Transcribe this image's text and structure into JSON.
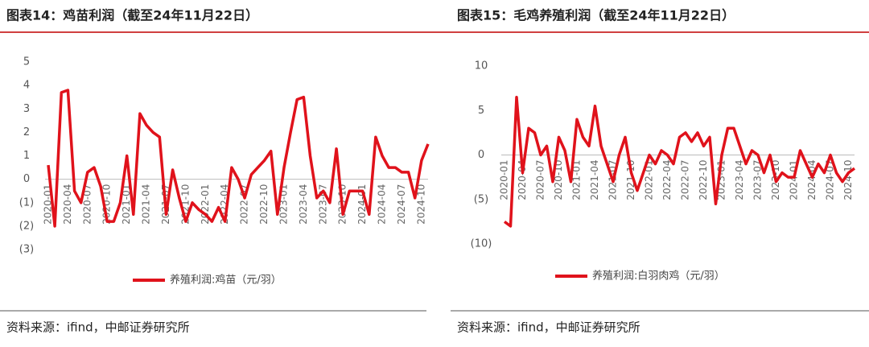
{
  "chart_data": [
    {
      "type": "line",
      "title": "图表14：鸡苗利润（截至24年11月22日）",
      "source": "资料来源：ifind，中邮证券研究所",
      "x": [
        "2020-01",
        "2020-02",
        "2020-03",
        "2020-04",
        "2020-05",
        "2020-06",
        "2020-07",
        "2020-08",
        "2020-09",
        "2020-10",
        "2020-11",
        "2020-12",
        "2021-01",
        "2021-02",
        "2021-03",
        "2021-04",
        "2021-05",
        "2021-06",
        "2021-07",
        "2021-08",
        "2021-09",
        "2021-10",
        "2021-11",
        "2021-12",
        "2022-01",
        "2022-02",
        "2022-03",
        "2022-04",
        "2022-05",
        "2022-06",
        "2022-07",
        "2022-08",
        "2022-09",
        "2022-10",
        "2022-11",
        "2022-12",
        "2023-01",
        "2023-02",
        "2023-03",
        "2023-04",
        "2023-05",
        "2023-06",
        "2023-07",
        "2023-08",
        "2023-09",
        "2023-10",
        "2023-11",
        "2023-12",
        "2024-01",
        "2024-02",
        "2024-03",
        "2024-04",
        "2024-05",
        "2024-06",
        "2024-07",
        "2024-08",
        "2024-09",
        "2024-10",
        "2024-11"
      ],
      "series": [
        {
          "name": "养殖利润:鸡苗（元/羽）",
          "color": "#e0121b",
          "values": [
            0.6,
            -2,
            3.7,
            3.8,
            -0.5,
            -1,
            0.3,
            0.5,
            -0.3,
            -1.8,
            -1.8,
            -1,
            1,
            -1.5,
            2.8,
            2.3,
            2,
            1.8,
            -1.5,
            0.4,
            -0.8,
            -1.8,
            -1,
            -1.3,
            -1.5,
            -1.8,
            -1.2,
            -1.8,
            0.5,
            0,
            -0.8,
            0.2,
            0.5,
            0.8,
            1.2,
            -1.5,
            0.5,
            2,
            3.4,
            3.5,
            1,
            -0.8,
            -0.5,
            -1,
            1.3,
            -1.5,
            -0.5,
            -0.5,
            -0.5,
            -1.5,
            1.8,
            1,
            0.5,
            0.5,
            0.3,
            0.3,
            -0.8,
            0.8,
            1.5
          ]
        }
      ],
      "xticks": [
        "2020-01",
        "2020-04",
        "2020-07",
        "2020-10",
        "2021-01",
        "2021-04",
        "2021-07",
        "2021-10",
        "2022-01",
        "2022-04",
        "2022-07",
        "2022-10",
        "2023-01",
        "2023-04",
        "2023-07",
        "2023-10",
        "2024-01",
        "2024-04",
        "2024-07",
        "2024-10"
      ],
      "ylim": [
        -3,
        5
      ],
      "yticks": [
        {
          "value": -3,
          "label": "(3)"
        },
        {
          "value": -2,
          "label": "(2)"
        },
        {
          "value": -1,
          "label": "(1)"
        },
        0,
        1,
        2,
        3,
        4,
        5
      ],
      "negative_label_color": "#e0121b",
      "grid": false
    },
    {
      "type": "line",
      "title": "图表15：毛鸡养殖利润（截至24年11月22日）",
      "source": "资料来源：ifind，中邮证券研究所",
      "x": [
        "2020-01",
        "2020-02",
        "2020-03",
        "2020-04",
        "2020-05",
        "2020-06",
        "2020-07",
        "2020-08",
        "2020-09",
        "2020-10",
        "2020-11",
        "2020-12",
        "2021-01",
        "2021-02",
        "2021-03",
        "2021-04",
        "2021-05",
        "2021-06",
        "2021-07",
        "2021-08",
        "2021-09",
        "2021-10",
        "2021-11",
        "2021-12",
        "2022-01",
        "2022-02",
        "2022-03",
        "2022-04",
        "2022-05",
        "2022-06",
        "2022-07",
        "2022-08",
        "2022-09",
        "2022-10",
        "2022-11",
        "2022-12",
        "2023-01",
        "2023-02",
        "2023-03",
        "2023-04",
        "2023-05",
        "2023-06",
        "2023-07",
        "2023-08",
        "2023-09",
        "2023-10",
        "2023-11",
        "2023-12",
        "2024-01",
        "2024-02",
        "2024-03",
        "2024-04",
        "2024-05",
        "2024-06",
        "2024-07",
        "2024-08",
        "2024-09",
        "2024-10",
        "2024-11"
      ],
      "series": [
        {
          "name": "养殖利润:白羽肉鸡（元/羽）",
          "color": "#e0121b",
          "values": [
            -7.5,
            -8,
            6.5,
            -2,
            3,
            2.5,
            0,
            1,
            -3,
            2,
            0.5,
            -3,
            4,
            2,
            1,
            5.5,
            1,
            -1,
            -3,
            0,
            2,
            -2,
            -4,
            -2,
            0,
            -1,
            0.5,
            0,
            -1,
            2,
            2.5,
            1.5,
            2.5,
            1,
            2,
            -5.5,
            0,
            3,
            3,
            1,
            -1,
            0.5,
            0,
            -2,
            0,
            -3,
            -2,
            -2.5,
            -2.5,
            0.5,
            -1,
            -2.5,
            -1,
            -2,
            0,
            -2,
            -3,
            -2,
            -1.5
          ]
        }
      ],
      "xticks": [
        "2020-01",
        "2020-04",
        "2020-07",
        "2020-10",
        "2021-01",
        "2021-04",
        "2021-07",
        "2021-10",
        "2022-01",
        "2022-04",
        "2022-07",
        "2022-10",
        "2023-01",
        "2023-04",
        "2023-07",
        "2023-10",
        "2024-01",
        "2024-04",
        "2024-07",
        "2024-10"
      ],
      "ylim": [
        -10,
        10
      ],
      "yticks": [
        {
          "value": -10,
          "label": "(10)"
        },
        {
          "value": -5,
          "label": "(5)"
        },
        0,
        5,
        10
      ],
      "negative_label_color": "#e0121b",
      "grid": false
    }
  ]
}
